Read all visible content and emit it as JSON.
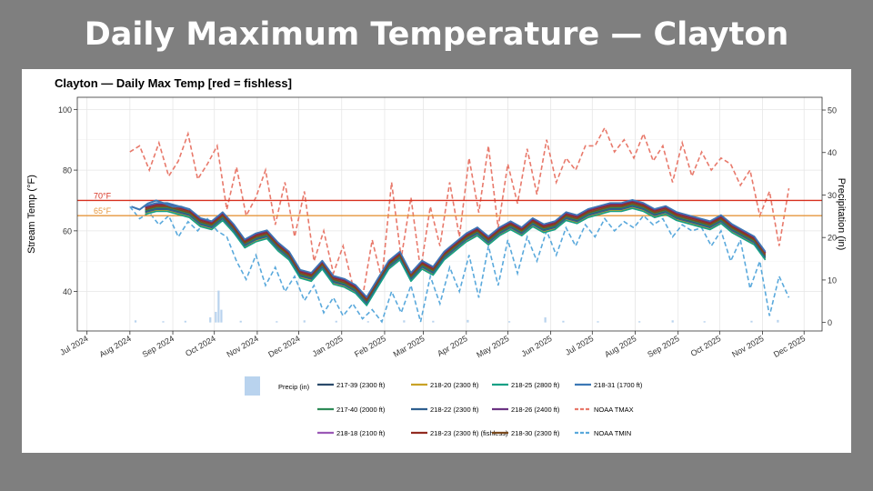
{
  "slide": {
    "title": "Daily Maximum Temperature — Clayton"
  },
  "chart_data": {
    "type": "line",
    "title": "Clayton — Daily Max Temp   [red = fishless]",
    "ylabel": "Stream Temp (°F)",
    "y2label": "Precipitation (in)",
    "ylim": [
      27,
      104
    ],
    "y2lim": [
      -2,
      53
    ],
    "yticks": [
      40,
      60,
      80,
      100
    ],
    "y2ticks": [
      0,
      10,
      20,
      30,
      40,
      50
    ],
    "xlim": [
      "2024-06-24",
      "2025-12-14"
    ],
    "xticks": [
      {
        "date": "2024-07-01",
        "label": "Jul 2024"
      },
      {
        "date": "2024-08-01",
        "label": "Aug 2024"
      },
      {
        "date": "2024-09-01",
        "label": "Sep 2024"
      },
      {
        "date": "2024-10-01",
        "label": "Oct 2024"
      },
      {
        "date": "2024-11-01",
        "label": "Nov 2024"
      },
      {
        "date": "2024-12-01",
        "label": "Dec 2024"
      },
      {
        "date": "2025-01-01",
        "label": "Jan 2025"
      },
      {
        "date": "2025-02-01",
        "label": "Feb 2025"
      },
      {
        "date": "2025-03-01",
        "label": "Mar 2025"
      },
      {
        "date": "2025-04-01",
        "label": "Apr 2025"
      },
      {
        "date": "2025-05-01",
        "label": "May 2025"
      },
      {
        "date": "2025-06-01",
        "label": "Jun 2025"
      },
      {
        "date": "2025-07-01",
        "label": "Jul 2025"
      },
      {
        "date": "2025-08-01",
        "label": "Aug 2025"
      },
      {
        "date": "2025-09-01",
        "label": "Sep 2025"
      },
      {
        "date": "2025-10-01",
        "label": "Oct 2025"
      },
      {
        "date": "2025-11-01",
        "label": "Nov 2025"
      },
      {
        "date": "2025-12-01",
        "label": "Dec 2025"
      }
    ],
    "thresholds": [
      {
        "value": 70,
        "label": "70°F",
        "color": "#d7301f"
      },
      {
        "value": 65,
        "label": "65°F",
        "color": "#e6963c"
      }
    ],
    "stream_series": [
      {
        "name": "217-39 (2300 ft)",
        "color": "#2b4a6b",
        "offset": -0.6
      },
      {
        "name": "217-40 (2000 ft)",
        "color": "#2e8b57",
        "offset": -0.3
      },
      {
        "name": "218-18 (2100 ft)",
        "color": "#9b59b6",
        "offset": 0.3
      },
      {
        "name": "218-20 (2300 ft)",
        "color": "#c9a227",
        "offset": -1.2
      },
      {
        "name": "218-22 (2300 ft)",
        "color": "#2f5f8f",
        "offset": -0.9
      },
      {
        "name": "218-23 (2300 ft) (fishless)",
        "color": "#922b21",
        "offset": 0.6
      },
      {
        "name": "218-25 (2800 ft)",
        "color": "#16a085",
        "offset": -1.6
      },
      {
        "name": "218-26 (2400 ft)",
        "color": "#6c3483",
        "offset": 0.9
      },
      {
        "name": "218-30 (2300 ft)",
        "color": "#7a4a1e",
        "offset": 0.0
      },
      {
        "name": "218-31 (1700 ft)",
        "color": "#3c78b5",
        "offset": 1.2
      }
    ],
    "stream_base": {
      "dates": [
        "2024-08-12",
        "2024-08-20",
        "2024-08-28",
        "2024-09-05",
        "2024-09-13",
        "2024-09-21",
        "2024-09-29",
        "2024-10-07",
        "2024-10-15",
        "2024-10-23",
        "2024-10-31",
        "2024-11-08",
        "2024-11-16",
        "2024-11-24",
        "2024-12-02",
        "2024-12-10",
        "2024-12-18",
        "2024-12-26",
        "2025-01-03",
        "2025-01-11",
        "2025-01-19",
        "2025-01-27",
        "2025-02-04",
        "2025-02-12",
        "2025-02-20",
        "2025-02-28",
        "2025-03-08",
        "2025-03-16",
        "2025-03-24",
        "2025-04-01",
        "2025-04-09",
        "2025-04-17",
        "2025-04-25",
        "2025-05-03",
        "2025-05-11",
        "2025-05-19",
        "2025-05-27",
        "2025-06-04",
        "2025-06-12",
        "2025-06-20",
        "2025-06-28",
        "2025-07-06",
        "2025-07-14",
        "2025-07-22",
        "2025-07-30",
        "2025-08-07",
        "2025-08-15",
        "2025-08-23",
        "2025-08-31",
        "2025-09-08",
        "2025-09-16",
        "2025-09-24",
        "2025-10-02",
        "2025-10-10",
        "2025-10-18",
        "2025-10-26",
        "2025-11-03"
      ],
      "values": [
        67,
        68,
        68,
        67,
        66,
        63,
        62,
        65,
        61,
        56,
        58,
        59,
        55,
        52,
        46,
        45,
        49,
        44,
        43,
        41,
        37,
        43,
        49,
        52,
        45,
        49,
        47,
        52,
        55,
        58,
        60,
        57,
        60,
        62,
        60,
        63,
        61,
        62,
        65,
        64,
        66,
        67,
        68,
        68,
        69,
        68,
        66,
        67,
        65,
        64,
        63,
        62,
        64,
        61,
        59,
        57,
        52
      ]
    },
    "solo_series": {
      "name": "218-31 (1700 ft)",
      "dates": [
        "2024-08-02",
        "2024-08-08",
        "2024-08-14",
        "2024-08-20",
        "2024-08-26",
        "2024-09-01",
        "2024-09-07",
        "2024-09-13"
      ],
      "values": [
        68,
        67,
        69,
        70,
        69,
        68,
        68,
        67
      ]
    },
    "noaa_tmax": {
      "name": "NOAA TMAX",
      "color": "#e8796b",
      "dates": [
        "2024-08-01",
        "2024-08-08",
        "2024-08-15",
        "2024-08-22",
        "2024-08-29",
        "2024-09-05",
        "2024-09-12",
        "2024-09-19",
        "2024-09-26",
        "2024-10-03",
        "2024-10-10",
        "2024-10-17",
        "2024-10-24",
        "2024-10-31",
        "2024-11-07",
        "2024-11-14",
        "2024-11-21",
        "2024-11-28",
        "2024-12-05",
        "2024-12-12",
        "2024-12-19",
        "2024-12-26",
        "2025-01-02",
        "2025-01-09",
        "2025-01-16",
        "2025-01-23",
        "2025-01-30",
        "2025-02-06",
        "2025-02-13",
        "2025-02-20",
        "2025-02-27",
        "2025-03-06",
        "2025-03-13",
        "2025-03-20",
        "2025-03-27",
        "2025-04-03",
        "2025-04-10",
        "2025-04-17",
        "2025-04-24",
        "2025-05-01",
        "2025-05-08",
        "2025-05-15",
        "2025-05-22",
        "2025-05-29",
        "2025-06-05",
        "2025-06-12",
        "2025-06-19",
        "2025-06-26",
        "2025-07-03",
        "2025-07-10",
        "2025-07-17",
        "2025-07-24",
        "2025-07-31",
        "2025-08-07",
        "2025-08-14",
        "2025-08-21",
        "2025-08-28",
        "2025-09-04",
        "2025-09-11",
        "2025-09-18",
        "2025-09-25",
        "2025-10-02",
        "2025-10-09",
        "2025-10-16",
        "2025-10-23",
        "2025-10-30",
        "2025-11-06",
        "2025-11-13",
        "2025-11-20"
      ],
      "values": [
        86,
        88,
        80,
        89,
        78,
        83,
        92,
        77,
        82,
        88,
        67,
        81,
        65,
        71,
        80,
        62,
        76,
        58,
        73,
        50,
        60,
        46,
        55,
        42,
        38,
        57,
        44,
        76,
        51,
        71,
        47,
        68,
        55,
        76,
        58,
        84,
        66,
        88,
        61,
        82,
        69,
        87,
        72,
        90,
        76,
        84,
        80,
        88,
        88,
        94,
        86,
        90,
        84,
        92,
        83,
        88,
        76,
        89,
        78,
        86,
        80,
        84,
        82,
        75,
        80,
        65,
        73,
        55,
        74
      ]
    },
    "noaa_tmin": {
      "name": "NOAA TMIN",
      "color": "#5aa9dc",
      "dates": [
        "2024-08-01",
        "2024-08-08",
        "2024-08-15",
        "2024-08-22",
        "2024-08-29",
        "2024-09-05",
        "2024-09-12",
        "2024-09-19",
        "2024-09-26",
        "2024-10-03",
        "2024-10-10",
        "2024-10-17",
        "2024-10-24",
        "2024-10-31",
        "2024-11-07",
        "2024-11-14",
        "2024-11-21",
        "2024-11-28",
        "2024-12-05",
        "2024-12-12",
        "2024-12-19",
        "2024-12-26",
        "2025-01-02",
        "2025-01-09",
        "2025-01-16",
        "2025-01-23",
        "2025-01-30",
        "2025-02-06",
        "2025-02-13",
        "2025-02-20",
        "2025-02-27",
        "2025-03-06",
        "2025-03-13",
        "2025-03-20",
        "2025-03-27",
        "2025-04-03",
        "2025-04-10",
        "2025-04-17",
        "2025-04-24",
        "2025-05-01",
        "2025-05-08",
        "2025-05-15",
        "2025-05-22",
        "2025-05-29",
        "2025-06-05",
        "2025-06-12",
        "2025-06-19",
        "2025-06-26",
        "2025-07-03",
        "2025-07-10",
        "2025-07-17",
        "2025-07-24",
        "2025-07-31",
        "2025-08-07",
        "2025-08-14",
        "2025-08-21",
        "2025-08-28",
        "2025-09-04",
        "2025-09-11",
        "2025-09-18",
        "2025-09-25",
        "2025-10-02",
        "2025-10-09",
        "2025-10-16",
        "2025-10-23",
        "2025-10-30",
        "2025-11-06",
        "2025-11-13",
        "2025-11-20"
      ],
      "values": [
        68,
        64,
        66,
        62,
        65,
        58,
        63,
        60,
        64,
        60,
        58,
        50,
        44,
        52,
        42,
        48,
        40,
        45,
        37,
        42,
        33,
        38,
        32,
        36,
        31,
        34,
        30,
        40,
        33,
        42,
        30,
        45,
        36,
        48,
        40,
        52,
        38,
        55,
        42,
        57,
        46,
        58,
        50,
        60,
        52,
        61,
        55,
        62,
        58,
        64,
        60,
        63,
        61,
        65,
        62,
        64,
        58,
        62,
        60,
        61,
        55,
        60,
        50,
        57,
        41,
        50,
        32,
        45,
        38
      ]
    },
    "precip": {
      "name": "Precip (in)",
      "color": "#b9d3ee",
      "dates": [
        "2024-08-05",
        "2024-08-25",
        "2024-09-10",
        "2024-09-28",
        "2024-10-02",
        "2024-10-04",
        "2024-10-06",
        "2024-10-20",
        "2024-11-15",
        "2024-12-05",
        "2024-12-28",
        "2025-01-20",
        "2025-02-15",
        "2025-03-08",
        "2025-04-02",
        "2025-05-02",
        "2025-05-28",
        "2025-06-10",
        "2025-07-05",
        "2025-08-04",
        "2025-08-28",
        "2025-09-20",
        "2025-10-24",
        "2025-11-12"
      ],
      "values": [
        0.5,
        0.3,
        0.4,
        1.2,
        2.5,
        7.5,
        3.0,
        0.4,
        0.3,
        0.5,
        0.4,
        0.3,
        0.5,
        0.4,
        0.6,
        0.3,
        1.2,
        0.4,
        0.3,
        0.3,
        0.5,
        0.3,
        0.4,
        0.6
      ]
    },
    "legend_placement": "bottom",
    "grid": true
  }
}
